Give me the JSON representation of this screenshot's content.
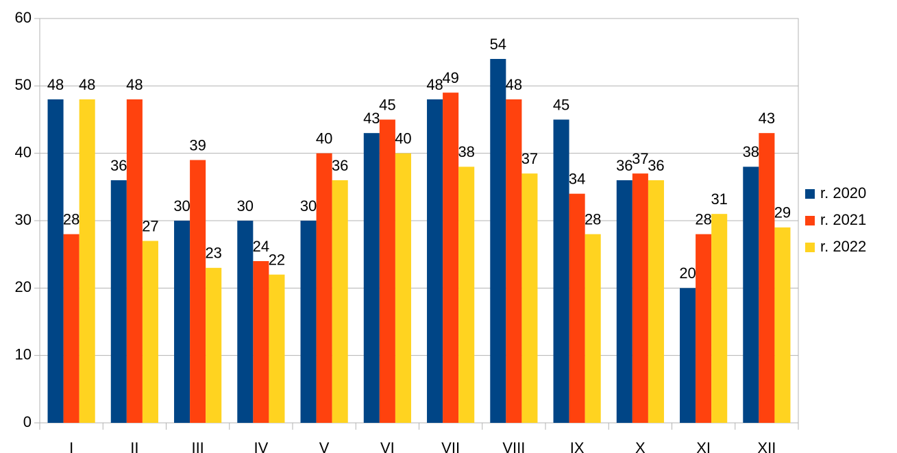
{
  "chart_data": {
    "type": "bar",
    "categories": [
      "I",
      "II",
      "III",
      "IV",
      "V",
      "VI",
      "VII",
      "VIII",
      "IX",
      "X",
      "XI",
      "XII"
    ],
    "series": [
      {
        "name": "r. 2020",
        "color": "#004586",
        "values": [
          48,
          36,
          30,
          30,
          30,
          43,
          48,
          54,
          45,
          36,
          20,
          38
        ]
      },
      {
        "name": "r. 2021",
        "color": "#ff420e",
        "values": [
          28,
          48,
          39,
          24,
          40,
          45,
          49,
          48,
          34,
          37,
          28,
          43
        ]
      },
      {
        "name": "r. 2022",
        "color": "#ffd320",
        "values": [
          48,
          27,
          23,
          22,
          36,
          40,
          38,
          37,
          28,
          36,
          31,
          29
        ]
      }
    ],
    "ylim": [
      0,
      60
    ],
    "yticks": [
      0,
      10,
      20,
      30,
      40,
      50,
      60
    ],
    "grid": true,
    "data_labels": true,
    "legend": "right"
  }
}
